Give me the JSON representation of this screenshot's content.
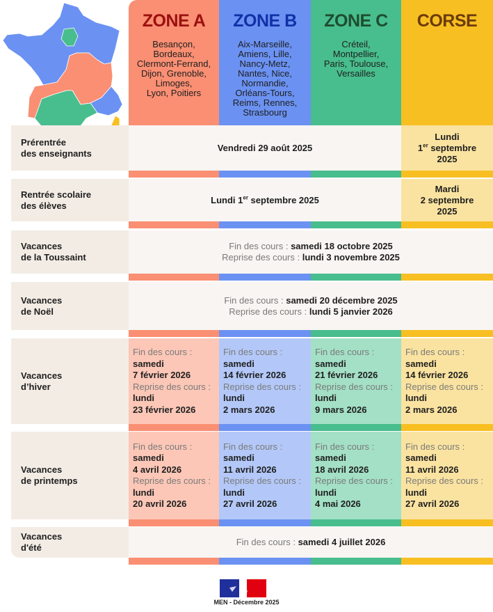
{
  "colors": {
    "zone_a": "#fa8f73",
    "zone_b": "#6b92f2",
    "zone_c": "#48bd8d",
    "corse": "#f8bf22",
    "zone_a_light": "#fcc7b7",
    "zone_b_light": "#b3c8f8",
    "zone_c_light": "#a3e0c6",
    "corse_light": "#fae3a0"
  },
  "zones": [
    {
      "title": "ZONE A",
      "academies": [
        "Besançon,",
        "Bordeaux,",
        "Clermont-Ferrand,",
        "Dijon, Grenoble,",
        "Limoges,",
        "Lyon, Poitiers"
      ]
    },
    {
      "title": "ZONE B",
      "academies": [
        "Aix-Marseille,",
        "Amiens, Lille,",
        "Nancy-Metz,",
        "Nantes, Nice,",
        "Normandie,",
        "Orléans-Tours,",
        "Reims, Rennes,",
        "Strasbourg"
      ]
    },
    {
      "title": "ZONE C",
      "academies": [
        "Créteil,",
        "Montpellier,",
        "Paris, Toulouse,",
        "Versailles"
      ]
    },
    {
      "title": "CORSE",
      "academies": []
    }
  ],
  "rows": [
    {
      "label": [
        "Prérentrée",
        "des enseignants"
      ],
      "merged": "Vendredi 29 août 2025",
      "corse": [
        "Lundi",
        "1|er| septembre",
        "2025"
      ]
    },
    {
      "label": [
        "Rentrée scolaire",
        "des élèves"
      ],
      "merged": "Lundi 1|er| septembre 2025",
      "corse": [
        "Mardi",
        "2 septembre",
        "2025"
      ]
    },
    {
      "label": [
        "Vacances",
        "de la Toussaint"
      ],
      "lines": [
        {
          "k": "Fin des cours : ",
          "v": "samedi 18 octobre 2025"
        },
        {
          "k": "Reprise des cours : ",
          "v": "lundi 3 novembre 2025"
        }
      ]
    },
    {
      "label": [
        "Vacances",
        "de Noël"
      ],
      "lines": [
        {
          "k": "Fin des cours : ",
          "v": "samedi 20 décembre 2025"
        },
        {
          "k": "Reprise des cours : ",
          "v": "lundi 5 janvier 2026"
        }
      ]
    },
    {
      "label": [
        "Vacances",
        "d’hiver"
      ],
      "split": [
        [
          "Fin des cours :",
          "samedi",
          "7 février 2026",
          "Reprise des cours :",
          "lundi",
          "23 février 2026"
        ],
        [
          "Fin des cours :",
          "samedi",
          "14 février 2026",
          "Reprise des cours :",
          "lundi",
          "2 mars 2026"
        ],
        [
          "Fin des cours :",
          "samedi",
          "21 février 2026",
          "Reprise des cours :",
          "lundi",
          "9 mars 2026"
        ],
        [
          "Fin des cours :",
          "samedi",
          "14 février 2026",
          "Reprise des cours :",
          "lundi",
          "2 mars 2026"
        ]
      ]
    },
    {
      "label": [
        "Vacances",
        "de printemps"
      ],
      "split": [
        [
          "Fin des cours :",
          "samedi",
          "4 avril 2026",
          "Reprise des cours :",
          "lundi",
          "20 avril 2026"
        ],
        [
          "Fin des cours :",
          "samedi",
          "11 avril 2026",
          "Reprise des cours :",
          "lundi",
          "27 avril 2026"
        ],
        [
          "Fin des cours :",
          "samedi",
          "18 avril 2026",
          "Reprise des cours :",
          "lundi",
          "4 mai 2026"
        ],
        [
          "Fin des cours :",
          "samedi",
          "11 avril 2026",
          "Reprise des cours :",
          "lundi",
          "27 avril 2026"
        ]
      ]
    },
    {
      "label": [
        "Vacances",
        "d'été"
      ],
      "lines": [
        {
          "k": "Fin des cours : ",
          "v": "samedi 4 juillet 2026"
        }
      ]
    }
  ],
  "footer": {
    "credit": "MEN - Décembre 2025"
  }
}
